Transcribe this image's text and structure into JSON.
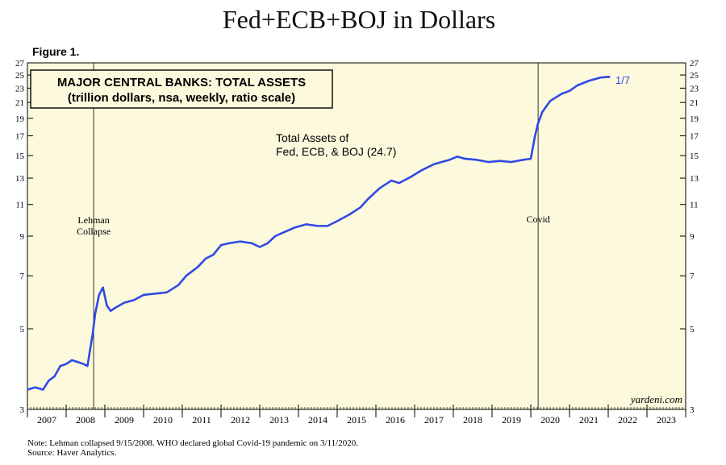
{
  "page": {
    "title": "Fed+ECB+BOJ in Dollars",
    "figure_label": "Figure 1."
  },
  "chart_data": {
    "type": "line",
    "title": "MAJOR CENTRAL BANKS: TOTAL ASSETS",
    "subtitle": "(trillion dollars, nsa, weekly, ratio scale)",
    "y_scale": "log",
    "ylim": [
      3,
      27
    ],
    "y_ticks": [
      3,
      5,
      7,
      9,
      11,
      13,
      15,
      17,
      19,
      21,
      23,
      25,
      27
    ],
    "x_range": [
      2007,
      2024
    ],
    "x_tick_labels": [
      "2007",
      "2008",
      "2009",
      "2010",
      "2011",
      "2012",
      "2013",
      "2014",
      "2015",
      "2016",
      "2017",
      "2018",
      "2019",
      "2020",
      "2021",
      "2022",
      "2023"
    ],
    "series": [
      {
        "name": "Total Assets of Fed, ECB, & BOJ (24.7)",
        "color": "#2f49e6",
        "x": [
          2007.0,
          2007.2,
          2007.4,
          2007.55,
          2007.7,
          2007.85,
          2008.0,
          2008.15,
          2008.3,
          2008.45,
          2008.55,
          2008.68,
          2008.75,
          2008.85,
          2008.95,
          2009.05,
          2009.15,
          2009.25,
          2009.5,
          2009.75,
          2010.0,
          2010.3,
          2010.6,
          2010.9,
          2011.1,
          2011.4,
          2011.6,
          2011.8,
          2012.0,
          2012.2,
          2012.5,
          2012.8,
          2013.0,
          2013.2,
          2013.4,
          2013.6,
          2013.9,
          2014.2,
          2014.5,
          2014.75,
          2015.0,
          2015.3,
          2015.6,
          2015.8,
          2016.1,
          2016.4,
          2016.6,
          2016.9,
          2017.2,
          2017.5,
          2017.7,
          2017.9,
          2018.1,
          2018.3,
          2018.6,
          2018.9,
          2019.2,
          2019.5,
          2019.8,
          2020.0,
          2020.1,
          2020.18,
          2020.3,
          2020.5,
          2020.8,
          2021.0,
          2021.2,
          2021.5,
          2021.8,
          2022.0,
          2022.05
        ],
        "y": [
          3.4,
          3.45,
          3.4,
          3.6,
          3.7,
          3.95,
          4.0,
          4.1,
          4.05,
          4.0,
          3.95,
          4.8,
          5.5,
          6.2,
          6.5,
          5.8,
          5.6,
          5.7,
          5.9,
          6.0,
          6.2,
          6.25,
          6.3,
          6.6,
          7.0,
          7.4,
          7.8,
          8.0,
          8.5,
          8.6,
          8.7,
          8.6,
          8.4,
          8.6,
          9.0,
          9.2,
          9.5,
          9.7,
          9.6,
          9.6,
          9.9,
          10.3,
          10.8,
          11.4,
          12.2,
          12.8,
          12.6,
          13.1,
          13.7,
          14.2,
          14.4,
          14.6,
          14.9,
          14.7,
          14.6,
          14.4,
          14.5,
          14.4,
          14.6,
          14.7,
          16.8,
          18.3,
          19.8,
          21.2,
          22.2,
          22.6,
          23.4,
          24.1,
          24.6,
          24.7,
          24.7
        ]
      }
    ],
    "annotations": {
      "series_label_line1": "Total Assets of",
      "series_label_line2": "Fed, ECB, & BOJ (24.7)",
      "end_label": "1/7",
      "event1_line1": "Lehman",
      "event1_line2": "Collapse",
      "event1_date": 2008.71,
      "event2_label": "Covid",
      "event2_date": 2020.19,
      "watermark": "yardeni.com"
    },
    "grid": false
  },
  "footnote": {
    "line1": "Note: Lehman collapsed 9/15/2008. WHO declared global Covid-19 pandemic on 3/11/2020.",
    "line2": "Source: Haver Analytics."
  },
  "colors": {
    "plot_background": "#fdf9dc",
    "line": "#2f49e6",
    "axis": "#000000"
  }
}
